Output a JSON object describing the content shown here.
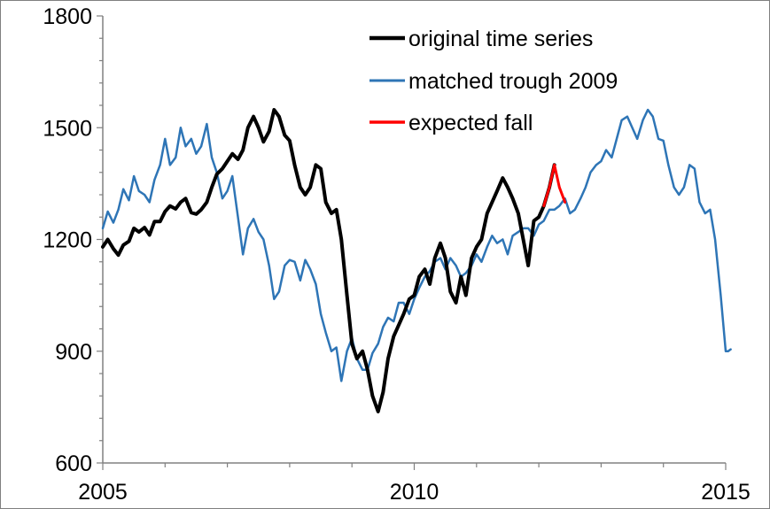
{
  "chart_data": {
    "type": "line",
    "title": "",
    "xlabel": "",
    "ylabel": "",
    "xlim": [
      2005,
      2015
    ],
    "ylim": [
      600,
      1800
    ],
    "x_ticks": [
      2005,
      2010,
      2015
    ],
    "x_tick_labels": [
      "2005",
      "2010",
      "2015"
    ],
    "y_ticks": [
      600,
      900,
      1200,
      1500,
      1800
    ],
    "y_tick_labels": [
      "600",
      "900",
      "1200",
      "1500",
      "1800"
    ],
    "x_minor_step": 1,
    "y_minor_step": 60,
    "grid": false,
    "legend_position": "top-right",
    "series": [
      {
        "name": "original time series",
        "color": "#000000",
        "width": 4,
        "points": [
          [
            2005.0,
            1180
          ],
          [
            2005.08,
            1200
          ],
          [
            2005.17,
            1175
          ],
          [
            2005.25,
            1158
          ],
          [
            2005.33,
            1185
          ],
          [
            2005.42,
            1195
          ],
          [
            2005.5,
            1230
          ],
          [
            2005.58,
            1220
          ],
          [
            2005.67,
            1232
          ],
          [
            2005.75,
            1212
          ],
          [
            2005.83,
            1248
          ],
          [
            2005.92,
            1248
          ],
          [
            2006.0,
            1275
          ],
          [
            2006.08,
            1290
          ],
          [
            2006.17,
            1282
          ],
          [
            2006.25,
            1300
          ],
          [
            2006.33,
            1310
          ],
          [
            2006.42,
            1272
          ],
          [
            2006.5,
            1268
          ],
          [
            2006.58,
            1280
          ],
          [
            2006.67,
            1300
          ],
          [
            2006.75,
            1340
          ],
          [
            2006.83,
            1375
          ],
          [
            2006.92,
            1390
          ],
          [
            2007.0,
            1410
          ],
          [
            2007.08,
            1430
          ],
          [
            2007.17,
            1415
          ],
          [
            2007.25,
            1440
          ],
          [
            2007.33,
            1500
          ],
          [
            2007.42,
            1530
          ],
          [
            2007.5,
            1500
          ],
          [
            2007.58,
            1462
          ],
          [
            2007.67,
            1490
          ],
          [
            2007.75,
            1548
          ],
          [
            2007.83,
            1530
          ],
          [
            2007.92,
            1480
          ],
          [
            2008.0,
            1465
          ],
          [
            2008.08,
            1400
          ],
          [
            2008.17,
            1340
          ],
          [
            2008.25,
            1320
          ],
          [
            2008.33,
            1340
          ],
          [
            2008.42,
            1400
          ],
          [
            2008.5,
            1390
          ],
          [
            2008.58,
            1300
          ],
          [
            2008.67,
            1270
          ],
          [
            2008.75,
            1280
          ],
          [
            2008.83,
            1200
          ],
          [
            2008.92,
            1050
          ],
          [
            2009.0,
            920
          ],
          [
            2009.08,
            880
          ],
          [
            2009.17,
            900
          ],
          [
            2009.25,
            850
          ],
          [
            2009.33,
            780
          ],
          [
            2009.42,
            738
          ],
          [
            2009.5,
            790
          ],
          [
            2009.58,
            880
          ],
          [
            2009.67,
            940
          ],
          [
            2009.75,
            970
          ],
          [
            2009.83,
            1000
          ],
          [
            2009.92,
            1040
          ],
          [
            2010.0,
            1050
          ],
          [
            2010.08,
            1100
          ],
          [
            2010.17,
            1120
          ],
          [
            2010.25,
            1080
          ],
          [
            2010.33,
            1150
          ],
          [
            2010.42,
            1190
          ],
          [
            2010.5,
            1150
          ],
          [
            2010.58,
            1060
          ],
          [
            2010.67,
            1030
          ],
          [
            2010.75,
            1100
          ],
          [
            2010.83,
            1050
          ],
          [
            2010.92,
            1150
          ],
          [
            2011.0,
            1180
          ],
          [
            2011.08,
            1200
          ],
          [
            2011.17,
            1270
          ],
          [
            2011.25,
            1300
          ],
          [
            2011.33,
            1330
          ],
          [
            2011.42,
            1365
          ],
          [
            2011.5,
            1340
          ],
          [
            2011.58,
            1310
          ],
          [
            2011.67,
            1270
          ],
          [
            2011.75,
            1200
          ],
          [
            2011.83,
            1130
          ],
          [
            2011.92,
            1250
          ],
          [
            2012.0,
            1260
          ],
          [
            2012.08,
            1290
          ],
          [
            2012.17,
            1340
          ],
          [
            2012.25,
            1400
          ]
        ]
      },
      {
        "name": "matched trough 2009",
        "color": "#2e75b6",
        "width": 2.5,
        "points": [
          [
            2005.0,
            1230
          ],
          [
            2005.08,
            1275
          ],
          [
            2005.17,
            1245
          ],
          [
            2005.25,
            1280
          ],
          [
            2005.33,
            1335
          ],
          [
            2005.42,
            1305
          ],
          [
            2005.5,
            1370
          ],
          [
            2005.58,
            1330
          ],
          [
            2005.67,
            1320
          ],
          [
            2005.75,
            1300
          ],
          [
            2005.83,
            1360
          ],
          [
            2005.92,
            1400
          ],
          [
            2006.0,
            1470
          ],
          [
            2006.08,
            1400
          ],
          [
            2006.17,
            1420
          ],
          [
            2006.25,
            1500
          ],
          [
            2006.33,
            1450
          ],
          [
            2006.42,
            1470
          ],
          [
            2006.5,
            1430
          ],
          [
            2006.58,
            1450
          ],
          [
            2006.67,
            1510
          ],
          [
            2006.75,
            1420
          ],
          [
            2006.83,
            1380
          ],
          [
            2006.92,
            1310
          ],
          [
            2007.0,
            1330
          ],
          [
            2007.08,
            1370
          ],
          [
            2007.17,
            1260
          ],
          [
            2007.25,
            1160
          ],
          [
            2007.33,
            1230
          ],
          [
            2007.42,
            1255
          ],
          [
            2007.5,
            1220
          ],
          [
            2007.58,
            1200
          ],
          [
            2007.67,
            1130
          ],
          [
            2007.75,
            1040
          ],
          [
            2007.83,
            1060
          ],
          [
            2007.92,
            1130
          ],
          [
            2008.0,
            1145
          ],
          [
            2008.08,
            1140
          ],
          [
            2008.17,
            1090
          ],
          [
            2008.25,
            1145
          ],
          [
            2008.33,
            1120
          ],
          [
            2008.42,
            1080
          ],
          [
            2008.5,
            1000
          ],
          [
            2008.58,
            950
          ],
          [
            2008.67,
            900
          ],
          [
            2008.75,
            910
          ],
          [
            2008.83,
            820
          ],
          [
            2008.92,
            900
          ],
          [
            2009.0,
            935
          ],
          [
            2009.08,
            880
          ],
          [
            2009.17,
            850
          ],
          [
            2009.25,
            850
          ],
          [
            2009.33,
            895
          ],
          [
            2009.42,
            920
          ],
          [
            2009.5,
            965
          ],
          [
            2009.58,
            990
          ],
          [
            2009.67,
            980
          ],
          [
            2009.75,
            1030
          ],
          [
            2009.83,
            1030
          ],
          [
            2009.92,
            1000
          ],
          [
            2010.0,
            1040
          ],
          [
            2010.08,
            1070
          ],
          [
            2010.17,
            1100
          ],
          [
            2010.25,
            1115
          ],
          [
            2010.33,
            1140
          ],
          [
            2010.42,
            1150
          ],
          [
            2010.5,
            1120
          ],
          [
            2010.58,
            1150
          ],
          [
            2010.67,
            1130
          ],
          [
            2010.75,
            1100
          ],
          [
            2010.83,
            1110
          ],
          [
            2010.92,
            1130
          ],
          [
            2011.0,
            1160
          ],
          [
            2011.08,
            1140
          ],
          [
            2011.17,
            1180
          ],
          [
            2011.25,
            1210
          ],
          [
            2011.33,
            1190
          ],
          [
            2011.42,
            1200
          ],
          [
            2011.5,
            1160
          ],
          [
            2011.58,
            1210
          ],
          [
            2011.67,
            1220
          ],
          [
            2011.75,
            1230
          ],
          [
            2011.83,
            1230
          ],
          [
            2011.92,
            1210
          ],
          [
            2012.0,
            1240
          ],
          [
            2012.08,
            1250
          ],
          [
            2012.17,
            1280
          ],
          [
            2012.25,
            1280
          ],
          [
            2012.33,
            1290
          ],
          [
            2012.42,
            1310
          ],
          [
            2012.5,
            1270
          ],
          [
            2012.58,
            1280
          ],
          [
            2012.67,
            1310
          ],
          [
            2012.75,
            1340
          ],
          [
            2012.83,
            1380
          ],
          [
            2012.92,
            1400
          ],
          [
            2013.0,
            1410
          ],
          [
            2013.08,
            1440
          ],
          [
            2013.17,
            1420
          ],
          [
            2013.25,
            1470
          ],
          [
            2013.33,
            1520
          ],
          [
            2013.42,
            1530
          ],
          [
            2013.5,
            1500
          ],
          [
            2013.58,
            1470
          ],
          [
            2013.67,
            1520
          ],
          [
            2013.75,
            1548
          ],
          [
            2013.83,
            1530
          ],
          [
            2013.92,
            1470
          ],
          [
            2014.0,
            1465
          ],
          [
            2014.08,
            1400
          ],
          [
            2014.17,
            1340
          ],
          [
            2014.25,
            1320
          ],
          [
            2014.33,
            1340
          ],
          [
            2014.42,
            1400
          ],
          [
            2014.5,
            1390
          ],
          [
            2014.58,
            1300
          ],
          [
            2014.67,
            1270
          ],
          [
            2014.75,
            1280
          ],
          [
            2014.83,
            1200
          ],
          [
            2014.92,
            1050
          ],
          [
            2015.0,
            900
          ],
          [
            2015.04,
            900
          ],
          [
            2015.08,
            905
          ]
        ]
      },
      {
        "name": "expected fall",
        "color": "#ff0000",
        "width": 3,
        "points": [
          [
            2012.08,
            1290
          ],
          [
            2012.17,
            1340
          ],
          [
            2012.25,
            1400
          ],
          [
            2012.33,
            1340
          ],
          [
            2012.42,
            1300
          ]
        ]
      }
    ]
  }
}
